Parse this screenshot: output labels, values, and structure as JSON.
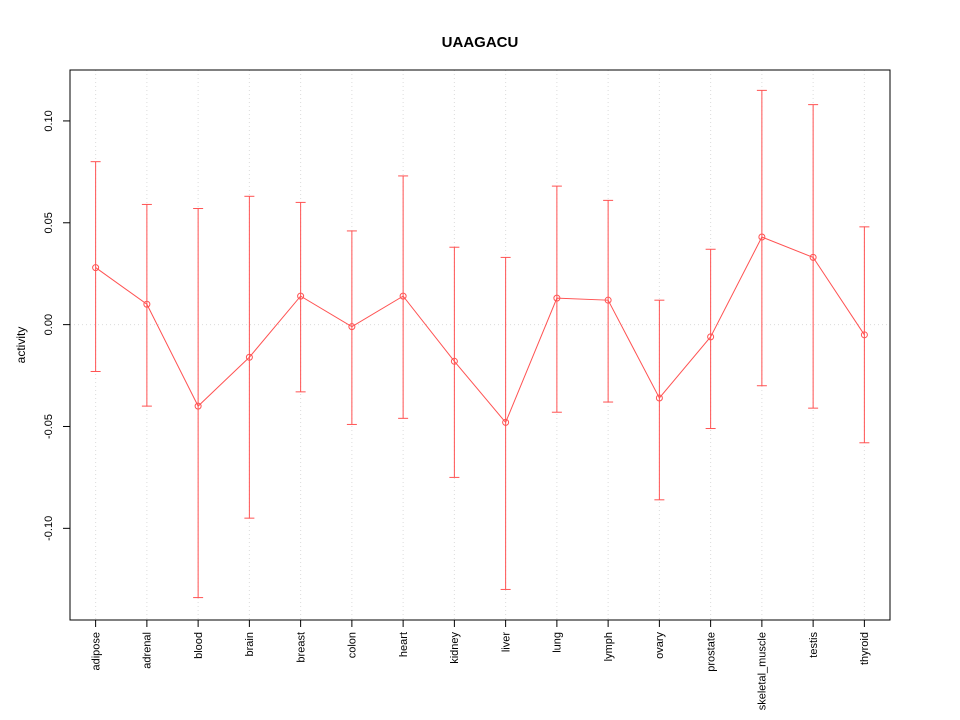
{
  "chart_data": {
    "type": "line",
    "title": "UAAGACU",
    "xlabel": "",
    "ylabel": "activity",
    "categories": [
      "adipose",
      "adrenal",
      "blood",
      "brain",
      "breast",
      "colon",
      "heart",
      "kidney",
      "liver",
      "lung",
      "lymph",
      "ovary",
      "prostate",
      "skeletal_muscle",
      "testis",
      "thyroid"
    ],
    "series": [
      {
        "name": "activity",
        "values": [
          0.028,
          0.01,
          -0.04,
          -0.016,
          0.014,
          -0.001,
          0.014,
          -0.018,
          -0.048,
          0.013,
          0.012,
          -0.036,
          -0.006,
          0.043,
          0.033,
          -0.005
        ]
      }
    ],
    "error_upper": [
      0.08,
      0.059,
      0.057,
      0.063,
      0.06,
      0.046,
      0.073,
      0.038,
      0.033,
      0.068,
      0.061,
      0.012,
      0.037,
      0.115,
      0.108,
      0.048
    ],
    "error_lower": [
      -0.023,
      -0.04,
      -0.134,
      -0.095,
      -0.033,
      -0.049,
      -0.046,
      -0.075,
      -0.13,
      -0.043,
      -0.038,
      -0.086,
      -0.051,
      -0.03,
      -0.041,
      -0.058
    ],
    "ylim": [
      -0.145,
      0.125
    ],
    "yticks": [
      -0.1,
      -0.05,
      0.0,
      0.05,
      0.1
    ],
    "ytick_labels": [
      "-0.10",
      "-0.05",
      "0.00",
      "0.05",
      "0.10"
    ],
    "grid": true,
    "legend": "none",
    "marker": "open-circle",
    "line_color": "#ff5252",
    "grid_color": "#dcdcdc",
    "axis_color": "#000000",
    "zero_line": 0
  }
}
